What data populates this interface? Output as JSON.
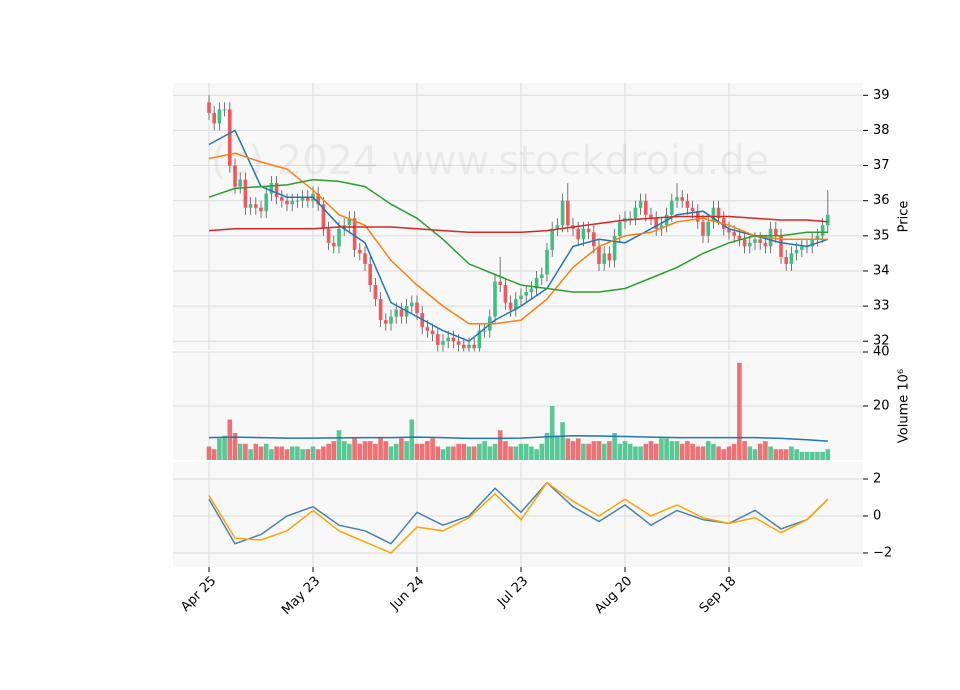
{
  "chart_data": [
    {
      "type": "candlestick",
      "watermark": "(c) 2024 www.stockdroid.de",
      "y_label": "Price",
      "categories": [
        "Apr 25",
        null,
        null,
        null,
        null,
        null,
        null,
        null,
        null,
        null,
        null,
        null,
        null,
        null,
        null,
        null,
        null,
        null,
        null,
        null,
        "May 23",
        null,
        null,
        null,
        null,
        null,
        null,
        null,
        null,
        null,
        null,
        null,
        null,
        null,
        null,
        null,
        null,
        null,
        null,
        null,
        "Jun 24",
        null,
        null,
        null,
        null,
        null,
        null,
        null,
        null,
        null,
        null,
        null,
        null,
        null,
        null,
        null,
        null,
        null,
        null,
        null,
        "Jul 23",
        null,
        null,
        null,
        null,
        null,
        null,
        null,
        null,
        null,
        null,
        null,
        null,
        null,
        null,
        null,
        null,
        null,
        null,
        null,
        "Aug 20",
        null,
        null,
        null,
        null,
        null,
        null,
        null,
        null,
        null,
        null,
        null,
        null,
        null,
        null,
        null,
        null,
        null,
        null,
        null,
        "Sep 18",
        null,
        null,
        null,
        null,
        null,
        null,
        null,
        null,
        null,
        null,
        null,
        null,
        null,
        null,
        null,
        null,
        null,
        null,
        null
      ],
      "open": [
        38.8,
        38.5,
        38.2,
        38.6,
        38.6,
        37.0,
        36.4,
        36.6,
        35.8,
        35.9,
        35.8,
        35.7,
        36.2,
        36.5,
        36.1,
        36.0,
        35.9,
        36.0,
        36.0,
        36.1,
        36.0,
        36.2,
        35.9,
        35.2,
        34.8,
        34.7,
        35.2,
        35.3,
        35.5,
        34.6,
        34.5,
        34.2,
        33.6,
        33.2,
        32.6,
        32.5,
        32.7,
        32.9,
        32.7,
        33.0,
        33.1,
        32.8,
        32.4,
        32.3,
        32.2,
        31.9,
        32.0,
        32.1,
        32.0,
        31.9,
        31.8,
        31.9,
        31.8,
        32.3,
        32.3,
        32.7,
        33.7,
        33.6,
        33.1,
        32.9,
        33.2,
        33.3,
        33.4,
        33.5,
        33.8,
        33.9,
        34.6,
        35.2,
        35.3,
        36.0,
        35.3,
        35.2,
        34.9,
        35.2,
        35.1,
        34.7,
        34.2,
        34.5,
        34.3,
        35.0,
        35.4,
        35.5,
        35.5,
        35.8,
        36.0,
        35.6,
        35.5,
        35.2,
        35.3,
        35.6,
        36.0,
        36.1,
        36.0,
        35.8,
        35.7,
        35.4,
        35.0,
        35.4,
        35.8,
        35.5,
        35.2,
        35.1,
        35.0,
        34.9,
        34.7,
        34.8,
        34.9,
        34.8,
        34.7,
        35.2,
        35.0,
        34.4,
        34.2,
        34.5,
        34.6,
        34.7,
        34.7,
        34.9,
        35.0,
        35.3
      ],
      "high": [
        39.0,
        38.7,
        38.8,
        38.8,
        38.8,
        37.2,
        36.8,
        36.8,
        36.1,
        36.1,
        36.0,
        36.4,
        36.7,
        36.7,
        36.3,
        36.2,
        36.2,
        36.2,
        36.3,
        36.3,
        36.4,
        36.4,
        36.1,
        35.4,
        35.0,
        35.4,
        35.5,
        35.7,
        35.7,
        34.8,
        34.7,
        34.4,
        33.8,
        33.4,
        32.8,
        32.9,
        33.1,
        33.1,
        33.2,
        33.3,
        33.3,
        33.0,
        32.6,
        32.5,
        32.4,
        32.2,
        32.3,
        32.3,
        32.2,
        32.1,
        32.1,
        32.1,
        32.5,
        32.5,
        32.9,
        33.9,
        34.4,
        33.8,
        33.3,
        33.4,
        33.5,
        33.6,
        33.7,
        34.0,
        34.1,
        34.8,
        35.4,
        35.5,
        36.2,
        36.5,
        35.5,
        35.4,
        35.4,
        35.4,
        35.3,
        34.9,
        34.7,
        34.7,
        35.2,
        35.6,
        35.7,
        35.7,
        36.0,
        36.2,
        36.2,
        35.8,
        35.7,
        35.5,
        35.8,
        36.2,
        36.5,
        36.3,
        36.2,
        36.0,
        35.9,
        35.6,
        35.6,
        36.0,
        36.0,
        35.7,
        35.4,
        35.3,
        35.2,
        35.1,
        35.0,
        35.1,
        35.1,
        35.0,
        35.4,
        35.4,
        35.2,
        34.6,
        34.7,
        34.8,
        34.9,
        34.9,
        35.1,
        35.2,
        35.5,
        36.3
      ],
      "low": [
        38.3,
        38.0,
        38.0,
        38.4,
        36.8,
        36.2,
        36.2,
        35.6,
        35.6,
        35.6,
        35.5,
        35.5,
        36.0,
        35.9,
        35.8,
        35.7,
        35.7,
        35.8,
        35.8,
        35.8,
        35.8,
        35.7,
        35.0,
        34.6,
        34.5,
        34.5,
        35.0,
        35.1,
        34.4,
        34.3,
        34.0,
        33.4,
        33.0,
        32.4,
        32.3,
        32.3,
        32.5,
        32.5,
        32.5,
        32.8,
        32.6,
        32.2,
        32.1,
        32.0,
        31.7,
        31.7,
        31.8,
        31.8,
        31.7,
        31.6,
        31.6,
        31.6,
        31.6,
        32.1,
        32.1,
        32.5,
        33.4,
        32.9,
        32.7,
        32.7,
        33.0,
        33.1,
        33.2,
        33.3,
        33.6,
        33.7,
        34.4,
        35.0,
        35.1,
        35.1,
        35.0,
        34.7,
        34.7,
        34.9,
        34.5,
        34.0,
        34.0,
        34.1,
        34.1,
        34.8,
        35.2,
        35.3,
        35.3,
        35.6,
        35.4,
        35.3,
        35.0,
        35.0,
        35.1,
        35.4,
        35.8,
        35.8,
        35.6,
        35.5,
        35.2,
        34.8,
        34.8,
        35.2,
        35.3,
        35.0,
        34.9,
        34.8,
        34.7,
        34.5,
        34.5,
        34.6,
        34.6,
        34.5,
        34.5,
        34.8,
        34.2,
        34.0,
        34.0,
        34.3,
        34.4,
        34.5,
        34.5,
        34.7,
        34.8,
        35.1
      ],
      "close": [
        38.5,
        38.2,
        38.6,
        38.6,
        37.0,
        36.4,
        36.6,
        35.8,
        35.9,
        35.8,
        35.7,
        36.2,
        36.5,
        36.1,
        36.0,
        35.9,
        36.0,
        36.0,
        36.1,
        36.0,
        36.2,
        35.9,
        35.2,
        34.8,
        34.7,
        35.2,
        35.3,
        35.5,
        34.6,
        34.5,
        34.2,
        33.6,
        33.2,
        32.6,
        32.5,
        32.7,
        32.9,
        32.7,
        33.0,
        33.1,
        32.8,
        32.4,
        32.3,
        32.2,
        31.9,
        32.0,
        32.1,
        32.0,
        31.9,
        31.8,
        31.9,
        31.8,
        32.3,
        32.3,
        32.7,
        33.7,
        33.6,
        33.1,
        32.9,
        33.2,
        33.3,
        33.4,
        33.5,
        33.8,
        33.9,
        34.6,
        35.2,
        35.3,
        36.0,
        35.3,
        35.2,
        34.9,
        35.2,
        35.1,
        34.7,
        34.2,
        34.5,
        34.3,
        35.0,
        35.4,
        35.5,
        35.5,
        35.8,
        36.0,
        35.6,
        35.5,
        35.2,
        35.3,
        35.6,
        36.0,
        36.1,
        36.0,
        35.8,
        35.7,
        35.4,
        35.0,
        35.4,
        35.8,
        35.5,
        35.2,
        35.1,
        35.0,
        34.9,
        34.7,
        34.8,
        34.9,
        34.8,
        34.7,
        35.2,
        35.0,
        34.4,
        34.2,
        34.5,
        34.6,
        34.7,
        34.7,
        34.9,
        35.0,
        35.3,
        35.6
      ],
      "up_color": "#3cc083",
      "down_color": "#f0585d",
      "series": [
        {
          "color": "#1f77b4",
          "x": [
            0,
            5,
            10,
            15,
            20,
            25,
            30,
            35,
            40,
            45,
            50,
            55,
            60,
            65,
            70,
            75,
            80,
            85,
            90,
            95,
            100,
            105,
            110,
            115,
            119
          ],
          "values": [
            37.6,
            38.0,
            36.4,
            36.1,
            36.1,
            35.3,
            34.8,
            33.1,
            32.7,
            32.3,
            32.0,
            32.6,
            33.0,
            33.5,
            34.7,
            34.9,
            34.8,
            35.2,
            35.6,
            35.7,
            35.2,
            35.0,
            34.8,
            34.7,
            34.9
          ]
        },
        {
          "color": "#ff7f0e",
          "x": [
            0,
            5,
            10,
            15,
            20,
            25,
            30,
            35,
            40,
            45,
            50,
            55,
            60,
            65,
            70,
            75,
            80,
            85,
            90,
            95,
            100,
            105,
            110,
            115,
            119
          ],
          "values": [
            37.2,
            37.35,
            37.1,
            36.9,
            36.3,
            35.6,
            35.3,
            34.3,
            33.6,
            33.0,
            32.5,
            32.5,
            32.6,
            33.2,
            34.1,
            34.7,
            35.0,
            35.1,
            35.4,
            35.5,
            35.3,
            35.0,
            34.9,
            34.9,
            34.9
          ]
        },
        {
          "color": "#2ca02c",
          "x": [
            0,
            5,
            10,
            15,
            20,
            25,
            30,
            35,
            40,
            45,
            50,
            55,
            60,
            65,
            70,
            75,
            80,
            85,
            90,
            95,
            100,
            105,
            110,
            115,
            119
          ],
          "values": [
            36.1,
            36.35,
            36.4,
            36.45,
            36.6,
            36.55,
            36.4,
            35.9,
            35.5,
            34.9,
            34.2,
            33.9,
            33.6,
            33.5,
            33.4,
            33.4,
            33.5,
            33.8,
            34.1,
            34.5,
            34.8,
            35.0,
            35.0,
            35.1,
            35.1
          ]
        },
        {
          "color": "#d62728",
          "x": [
            0,
            5,
            10,
            15,
            20,
            25,
            30,
            35,
            40,
            45,
            50,
            55,
            60,
            65,
            70,
            75,
            80,
            85,
            90,
            95,
            100,
            105,
            110,
            115,
            119
          ],
          "values": [
            35.15,
            35.2,
            35.2,
            35.2,
            35.2,
            35.25,
            35.25,
            35.25,
            35.2,
            35.15,
            35.1,
            35.1,
            35.1,
            35.15,
            35.25,
            35.35,
            35.45,
            35.5,
            35.55,
            35.55,
            35.55,
            35.5,
            35.45,
            35.45,
            35.4
          ]
        }
      ],
      "ylim": [
        31.75,
        39.35
      ],
      "yticks": [
        32,
        33,
        34,
        35,
        36,
        37,
        38,
        39
      ],
      "grid": true
    },
    {
      "type": "bar",
      "y_label": "Volume 10⁶",
      "values": [
        5,
        4,
        8,
        9,
        15,
        10,
        6,
        6,
        4,
        6,
        5,
        6,
        4,
        5,
        5,
        4,
        5,
        5,
        4,
        4,
        5,
        4,
        5,
        6,
        7,
        11,
        7,
        6,
        8,
        6,
        7,
        7,
        6,
        8,
        7,
        5,
        6,
        8,
        7,
        15,
        6,
        6,
        7,
        8,
        5,
        4,
        5,
        5,
        6,
        6,
        5,
        5,
        6,
        7,
        5,
        6,
        11,
        7,
        5,
        5,
        6,
        6,
        5,
        4,
        6,
        10,
        20,
        9,
        14,
        8,
        7,
        8,
        6,
        6,
        7,
        7,
        6,
        7,
        10,
        6,
        7,
        6,
        5,
        5,
        6,
        7,
        6,
        8,
        8,
        7,
        7,
        6,
        7,
        6,
        5,
        5,
        7,
        6,
        5,
        4,
        5,
        6,
        36,
        7,
        5,
        4,
        6,
        7,
        5,
        4,
        4,
        4,
        5,
        4,
        3,
        3,
        3,
        3,
        3,
        4
      ],
      "series": [
        {
          "color": "#1f77b4",
          "x": [
            0,
            5,
            10,
            15,
            20,
            25,
            30,
            35,
            40,
            45,
            50,
            55,
            60,
            65,
            70,
            75,
            80,
            85,
            90,
            95,
            100,
            105,
            110,
            115,
            119
          ],
          "values": [
            8.3,
            8.5,
            8.3,
            8.1,
            8.1,
            8.2,
            8.3,
            8.3,
            8.5,
            8.3,
            8.0,
            8.0,
            8.1,
            8.6,
            9.0,
            8.9,
            8.7,
            8.5,
            8.3,
            8.3,
            8.3,
            8.3,
            8.0,
            7.5,
            7.0
          ]
        }
      ],
      "ylim": [
        0,
        40
      ],
      "yticks": [
        20,
        40
      ],
      "grid": true
    },
    {
      "type": "line",
      "series": [
        {
          "color": "#4682b4",
          "x": [
            0,
            5,
            10,
            15,
            20,
            25,
            30,
            35,
            40,
            45,
            50,
            55,
            60,
            65,
            70,
            75,
            80,
            85,
            90,
            95,
            100,
            105,
            110,
            115,
            119
          ],
          "values": [
            0.9,
            -1.5,
            -1.0,
            0.0,
            0.5,
            -0.5,
            -0.8,
            -1.5,
            0.2,
            -0.5,
            0.0,
            1.5,
            0.2,
            1.8,
            0.5,
            -0.3,
            0.6,
            -0.5,
            0.3,
            -0.2,
            -0.4,
            0.3,
            -0.7,
            -0.2,
            0.9
          ]
        },
        {
          "color": "#ffa500",
          "x": [
            0,
            5,
            10,
            15,
            20,
            25,
            30,
            35,
            40,
            45,
            50,
            55,
            60,
            65,
            70,
            75,
            80,
            85,
            90,
            95,
            100,
            105,
            110,
            115,
            119
          ],
          "values": [
            1.1,
            -1.2,
            -1.3,
            -0.8,
            0.3,
            -0.8,
            -1.4,
            -2.0,
            -0.6,
            -0.8,
            -0.1,
            1.2,
            -0.2,
            1.8,
            0.8,
            0.0,
            0.9,
            0.0,
            0.6,
            -0.1,
            -0.4,
            -0.1,
            -0.9,
            -0.2,
            0.9
          ]
        }
      ],
      "ylim": [
        -2.76,
        2.92
      ],
      "yticks": [
        {
          "value": -2,
          "label": "−2"
        },
        0,
        2
      ],
      "grid": true
    }
  ]
}
